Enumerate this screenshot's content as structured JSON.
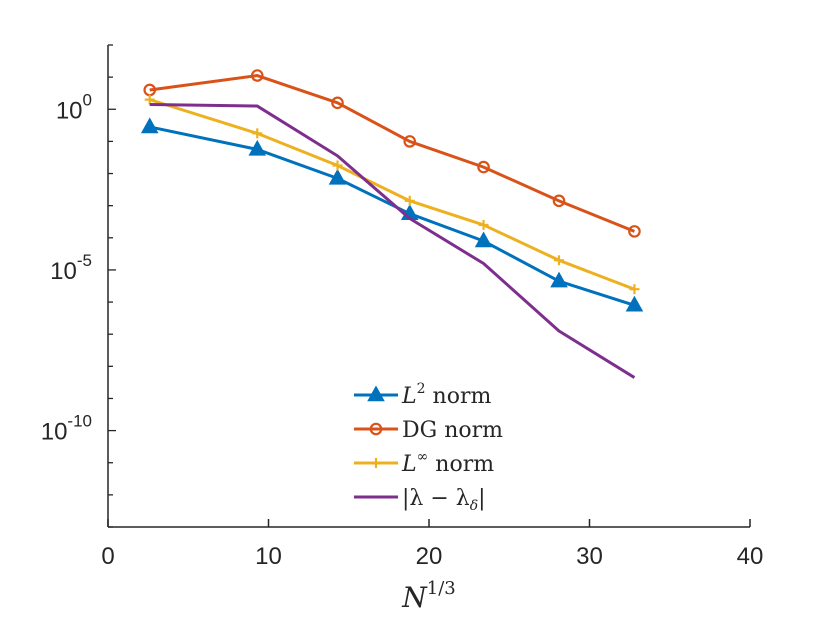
{
  "chart_data": {
    "type": "line",
    "title": "",
    "xlabel": {
      "base": "N",
      "exponent": "1/3"
    },
    "ylabel": "",
    "xlim": [
      0,
      40
    ],
    "ylim_log10": [
      -13,
      2
    ],
    "y_scale": "log",
    "x_ticks": [
      "0",
      "10",
      "20",
      "30",
      "40"
    ],
    "y_ticks": [
      {
        "base": "10",
        "exponent": "0",
        "value_log10": 0
      },
      {
        "base": "10",
        "exponent": "-5",
        "value_log10": -5
      },
      {
        "base": "10",
        "exponent": "-10",
        "value_log10": -10
      }
    ],
    "grid": false,
    "legend_position": "bottom-center",
    "series": [
      {
        "legend": {
          "base": "L",
          "sup": "2",
          "rest": " norm"
        },
        "color": "#0072BD",
        "marker": "triangle",
        "x": [
          2.6,
          9.3,
          14.3,
          18.8,
          23.4,
          28.1,
          32.8
        ],
        "y_log10": [
          -0.55,
          -1.25,
          -2.15,
          -3.25,
          -4.1,
          -5.35,
          -6.1
        ]
      },
      {
        "legend": {
          "base": "DG norm",
          "sup": "",
          "rest": ""
        },
        "color": "#D95319",
        "marker": "circle",
        "x": [
          2.6,
          9.3,
          14.3,
          18.8,
          23.4,
          28.1,
          32.8
        ],
        "y_log10": [
          0.6,
          1.05,
          0.2,
          -1.0,
          -1.8,
          -2.85,
          -3.8
        ]
      },
      {
        "legend": {
          "base": "L",
          "sup": "∞",
          "rest": " norm"
        },
        "color": "#EDB120",
        "marker": "plus",
        "x": [
          2.6,
          9.3,
          14.3,
          18.8,
          23.4,
          28.1,
          32.8
        ],
        "y_log10": [
          0.3,
          -0.75,
          -1.75,
          -2.85,
          -3.6,
          -4.7,
          -5.6
        ]
      },
      {
        "legend": {
          "base": "|λ − λ",
          "sub": "δ",
          "rest": "|"
        },
        "color": "#7E2F8E",
        "marker": "none",
        "x": [
          2.6,
          9.3,
          14.3,
          18.8,
          23.4,
          28.1,
          32.8
        ],
        "y_log10": [
          0.15,
          0.1,
          -1.45,
          -3.4,
          -4.8,
          -6.9,
          -8.35
        ]
      }
    ]
  }
}
